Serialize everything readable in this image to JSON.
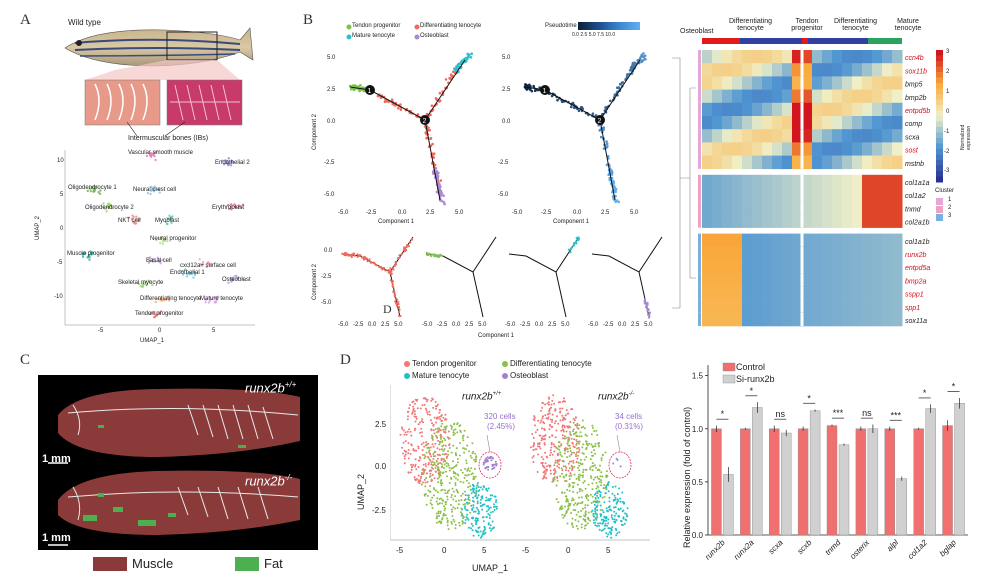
{
  "panel_labels": {
    "A": "A",
    "B": "B",
    "C": "C",
    "D": "D",
    "D_inset": "D"
  },
  "panel_a": {
    "fish_label": "Wild type",
    "ib_label": "Intermuscular bones (IBs)",
    "umap": {
      "xlabel": "UMAP_1",
      "ylabel": "UMAP_2",
      "x_ticks": [
        "-5",
        "0",
        "5"
      ],
      "y_ticks": [
        "10",
        "5",
        "0",
        "-5",
        "-10"
      ],
      "clusters": [
        {
          "name": "Vascular smooth muscle",
          "color": "#e07bb5"
        },
        {
          "name": "Endothelial 2",
          "color": "#9a85d6"
        },
        {
          "name": "Oligodendrocyte 1",
          "color": "#6ab04c"
        },
        {
          "name": "Neural crest cell",
          "color": "#8cc0e8"
        },
        {
          "name": "Oligodendrocyte 2",
          "color": "#9bcf6a"
        },
        {
          "name": "Erythroblast",
          "color": "#e06a8a"
        },
        {
          "name": "NKT cell",
          "color": "#f08a8a"
        },
        {
          "name": "Myoblast",
          "color": "#5fc9b5"
        },
        {
          "name": "Neural progenitor",
          "color": "#b8d88a"
        },
        {
          "name": "Muscle progenitor",
          "color": "#2ab0a0"
        },
        {
          "name": "Basal cell",
          "color": "#c8a0e0"
        },
        {
          "name": "cxcl12a+ surface cell",
          "color": "#f0a0c0"
        },
        {
          "name": "Endothelial 1",
          "color": "#70c0e0"
        },
        {
          "name": "Osteoblast",
          "color": "#b09ae0"
        },
        {
          "name": "Skeletal myocyte",
          "color": "#a0d080"
        },
        {
          "name": "Differentiating tenocyte",
          "color": "#f4b084"
        },
        {
          "name": "Mature tenocyte",
          "color": "#d9a0e8"
        },
        {
          "name": "Tendon progenitor",
          "color": "#f08070"
        }
      ]
    }
  },
  "panel_b": {
    "legend": [
      {
        "name": "Tendon progenitor",
        "color": "#7dc24a"
      },
      {
        "name": "Differentiating tenocyte",
        "color": "#ee6b5e"
      },
      {
        "name": "Mature tenocyte",
        "color": "#2fc0cc"
      },
      {
        "name": "Osteoblast",
        "color": "#a88ad6"
      }
    ],
    "pseudotime_label": "Pseudotime",
    "pseudotime_ticks": [
      "0.0",
      "2.5",
      "5.0",
      "7.5",
      "10.0"
    ],
    "component1": "Component 1",
    "component2": "Component 2",
    "y_ticks": [
      "5.0",
      "2.5",
      "0.0",
      "-2.5",
      "-5.0"
    ],
    "x_ticks": [
      "-5.0",
      "-2.5",
      "0.0",
      "2.5",
      "5.0"
    ],
    "small_y_ticks": [
      "0.0",
      "-2.5",
      "-5.0"
    ],
    "small_x_ticks": [
      "-5.0",
      "-2.5",
      "0.0",
      "2.5",
      "5.0"
    ],
    "branch_points": [
      "1",
      "2"
    ],
    "heatmap": {
      "header_left": "Osteoblast",
      "header_diff1": "Differentiating\ntenocyte",
      "header_tendon": "Tendon\nprogenitor",
      "header_diff2": "Differentiating\ntenocyte",
      "header_mature": "Mature\ntenocyte",
      "colorbar_title": "Normalized expression",
      "colorbar_ticks": [
        "3",
        "2",
        "1",
        "0",
        "-1",
        "-2",
        "-3"
      ],
      "cluster_title": "Cluster",
      "cluster_ids": [
        "1",
        "2",
        "3"
      ],
      "genes": [
        {
          "name": "ccn4b",
          "red": true
        },
        {
          "name": "sox11b",
          "red": true
        },
        {
          "name": "bmp5",
          "red": false
        },
        {
          "name": "bmp2b",
          "red": false
        },
        {
          "name": "entpd5b",
          "red": true
        },
        {
          "name": "comp",
          "red": false
        },
        {
          "name": "scxa",
          "red": false
        },
        {
          "name": "sost",
          "red": true
        },
        {
          "name": "mstnb",
          "red": false
        },
        {
          "name": "col1a1a",
          "red": false
        },
        {
          "name": "col1a2",
          "red": false
        },
        {
          "name": "tnmd",
          "red": false
        },
        {
          "name": "col2a1b",
          "red": false
        },
        {
          "name": "col1a1b",
          "red": false
        },
        {
          "name": "runx2b",
          "red": true
        },
        {
          "name": "entpd5a",
          "red": true
        },
        {
          "name": "bmp2a",
          "red": true
        },
        {
          "name": "sspp1",
          "red": true
        },
        {
          "name": "spp1",
          "red": true
        },
        {
          "name": "sox11a",
          "red": false
        }
      ]
    }
  },
  "panel_c": {
    "genotype_top": "runx2b",
    "genotype_top_sup": "+/+",
    "genotype_bottom": "runx2b",
    "genotype_bottom_sup": "-/-",
    "scale_top": "1 mm",
    "scale_bottom": "1 mm",
    "legend_muscle": "Muscle",
    "legend_fat": "Fat",
    "muscle_color": "#8b3a3a",
    "fat_color": "#4caf50"
  },
  "panel_d": {
    "legend": [
      {
        "name": "Tendon progenitor",
        "color": "#f07878"
      },
      {
        "name": "Differentiating tenocyte",
        "color": "#8cc04a"
      },
      {
        "name": "Mature tenocyte",
        "color": "#20c0c8"
      },
      {
        "name": "Osteoblast",
        "color": "#a080d0"
      }
    ],
    "xlabel": "UMAP_1",
    "ylabel": "UMAP_2",
    "y_ticks": [
      "2.5",
      "0.0",
      "-2.5"
    ],
    "x_ticks_left": [
      "-5",
      "0",
      "5"
    ],
    "x_ticks_right": [
      "-5",
      "0",
      "5"
    ],
    "left_title": "runx2b",
    "left_title_sup": "+/+",
    "right_title": "runx2b",
    "right_title_sup": "-/-",
    "left_cells": "320 cells",
    "left_pct": "(2.45%)",
    "right_cells": "34 cells",
    "right_pct": "(0.31%)"
  },
  "chart_data": {
    "type": "bar",
    "categories": [
      "runx2b",
      "runx2a",
      "scxa",
      "scxb",
      "tnmd",
      "osterix",
      "alpl",
      "col1a2",
      "bglap"
    ],
    "series": [
      {
        "name": "Control",
        "color": "#f07070",
        "values": [
          1.0,
          1.0,
          1.0,
          1.0,
          1.03,
          1.0,
          1.0,
          1.0,
          1.03
        ]
      },
      {
        "name": "Si-runx2b",
        "color": "#d0d0d0",
        "values": [
          0.57,
          1.2,
          0.96,
          1.17,
          0.85,
          1.0,
          0.53,
          1.19,
          1.24
        ]
      }
    ],
    "errors_control": [
      0.03,
      0.01,
      0.03,
      0.02,
      0.01,
      0.02,
      0.02,
      0.01,
      0.05
    ],
    "errors_si": [
      0.07,
      0.05,
      0.03,
      0.01,
      0.01,
      0.04,
      0.02,
      0.04,
      0.05
    ],
    "significance": [
      "*",
      "*",
      "ns",
      "*",
      "***",
      "ns",
      "***",
      "*",
      "*"
    ],
    "ylabel": "Relative expression (fold of control)",
    "ylim": [
      0.0,
      1.6
    ],
    "y_ticks": [
      "0.0",
      "0.5",
      "1.0",
      "1.5"
    ],
    "legend_control": "Control",
    "legend_si": "Si-runx2b"
  }
}
